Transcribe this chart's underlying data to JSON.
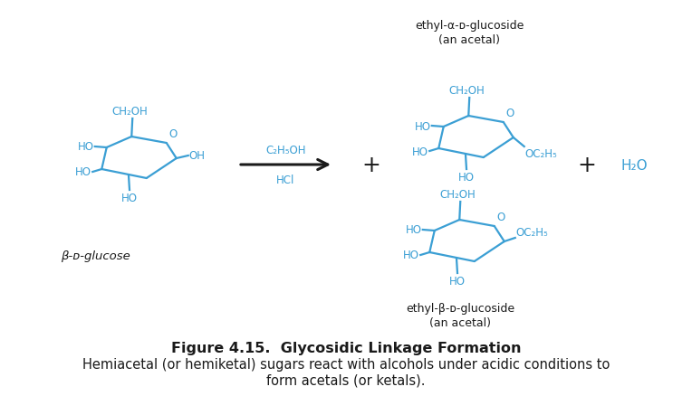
{
  "bg_color": "#ffffff",
  "blue": "#3b9fd4",
  "black": "#1a1a1a",
  "title": "Figure 4.15.  Glycosidic Linkage Formation",
  "caption1": "Hemiacetal (or hemiketal) sugars react with alcohols under acidic conditions to",
  "caption2": "form acetals (or ketals).",
  "title_fontsize": 11.5,
  "caption_fontsize": 10.5,
  "figsize": [
    7.64,
    4.6
  ],
  "dpi": 100
}
